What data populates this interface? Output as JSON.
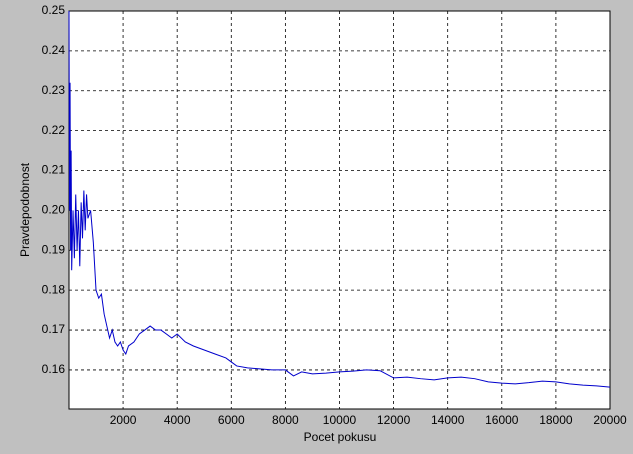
{
  "chart_data": {
    "type": "line",
    "xlabel": "Pocet pokusu",
    "ylabel": "Pravdepodobnost",
    "x": [
      1,
      20,
      40,
      60,
      80,
      100,
      150,
      200,
      250,
      300,
      350,
      400,
      450,
      500,
      550,
      600,
      650,
      700,
      800,
      900,
      1000,
      1100,
      1200,
      1300,
      1400,
      1500,
      1600,
      1700,
      1800,
      1900,
      2000,
      2100,
      2200,
      2400,
      2600,
      2800,
      3000,
      3200,
      3400,
      3600,
      3800,
      4000,
      4300,
      4600,
      5000,
      5400,
      5800,
      6000,
      6200,
      6600,
      7000,
      7500,
      8000,
      8300,
      8600,
      9000,
      9500,
      10000,
      10500,
      11000,
      11500,
      12000,
      12500,
      13000,
      13500,
      14000,
      14500,
      15000,
      15500,
      16000,
      16500,
      17000,
      17500,
      18000,
      18500,
      19000,
      19500,
      20000
    ],
    "series": [
      {
        "color": "#0000cc",
        "values": [
          0.25,
          0.2,
          0.232,
          0.19,
          0.215,
          0.185,
          0.2,
          0.188,
          0.204,
          0.19,
          0.2,
          0.186,
          0.202,
          0.193,
          0.205,
          0.195,
          0.204,
          0.198,
          0.2,
          0.192,
          0.18,
          0.178,
          0.179,
          0.174,
          0.171,
          0.168,
          0.17,
          0.167,
          0.166,
          0.167,
          0.165,
          0.164,
          0.166,
          0.167,
          0.169,
          0.17,
          0.171,
          0.17,
          0.17,
          0.169,
          0.168,
          0.169,
          0.167,
          0.166,
          0.165,
          0.164,
          0.163,
          0.162,
          0.161,
          0.1605,
          0.1603,
          0.16,
          0.16,
          0.1585,
          0.1595,
          0.159,
          0.1592,
          0.1595,
          0.1597,
          0.16,
          0.1598,
          0.158,
          0.1582,
          0.1578,
          0.1575,
          0.158,
          0.1582,
          0.1578,
          0.157,
          0.1567,
          0.1565,
          0.1568,
          0.1572,
          0.157,
          0.1565,
          0.1562,
          0.156,
          0.1557
        ]
      }
    ],
    "xlim": [
      1,
      20000
    ],
    "ylim": [
      0.1502,
      0.25
    ],
    "xticks": [
      2000,
      4000,
      6000,
      8000,
      10000,
      12000,
      14000,
      16000,
      18000,
      20000
    ],
    "yticks": [
      0.16,
      0.17,
      0.18,
      0.19,
      {
        "value": 0.2,
        "label": "0.20"
      },
      0.21,
      0.22,
      0.23,
      0.24,
      0.25
    ],
    "grid": true
  }
}
